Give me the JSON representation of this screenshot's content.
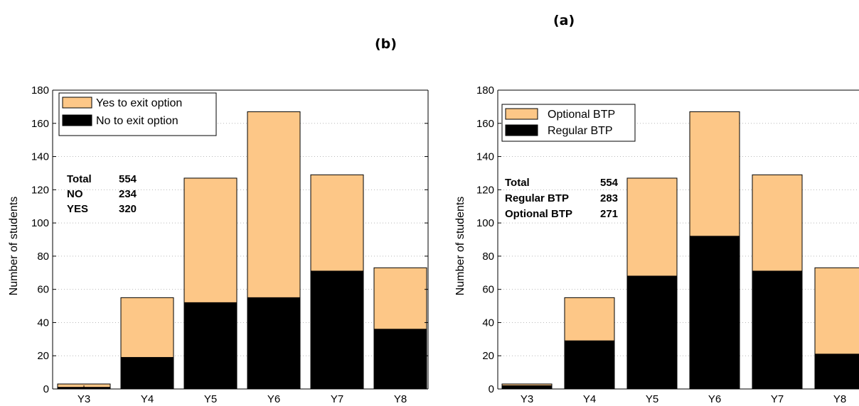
{
  "panel_labels": {
    "a": "(a)",
    "b": "(b)"
  },
  "colors": {
    "top_series": "#fdc787",
    "bottom_series": "#000000"
  },
  "chart_data": [
    {
      "type": "bar",
      "stacked": true,
      "categories": [
        "Y3",
        "Y4",
        "Y5",
        "Y6",
        "Y7",
        "Y8"
      ],
      "series": [
        {
          "name": "No to exit option",
          "values": [
            1,
            19,
            52,
            55,
            71,
            36
          ],
          "color": "#000000"
        },
        {
          "name": "Yes to exit option",
          "values": [
            2,
            36,
            75,
            112,
            58,
            37
          ],
          "color": "#fdc787"
        }
      ],
      "legend_order": [
        "Yes to exit option",
        "No to exit option"
      ],
      "legend": "top-left",
      "ylabel": "Number of students",
      "ylim": [
        0,
        180
      ],
      "yticks": [
        0,
        20,
        40,
        60,
        80,
        100,
        120,
        140,
        160,
        180
      ],
      "grid": true,
      "annotation": [
        {
          "label": "Total",
          "value": "554"
        },
        {
          "label": "NO",
          "value": "234"
        },
        {
          "label": "YES",
          "value": "320"
        }
      ]
    },
    {
      "type": "bar",
      "stacked": true,
      "categories": [
        "Y3",
        "Y4",
        "Y5",
        "Y6",
        "Y7",
        "Y8"
      ],
      "series": [
        {
          "name": "Regular BTP",
          "values": [
            2,
            29,
            68,
            92,
            71,
            21
          ],
          "color": "#000000"
        },
        {
          "name": "Optional BTP",
          "values": [
            1,
            26,
            59,
            75,
            58,
            52
          ],
          "color": "#fdc787"
        }
      ],
      "legend_order": [
        "Optional BTP",
        "Regular BTP"
      ],
      "legend": "top-left",
      "ylabel": "Number of students",
      "ylim": [
        0,
        180
      ],
      "yticks": [
        0,
        20,
        40,
        60,
        80,
        100,
        120,
        140,
        160,
        180
      ],
      "grid": true,
      "annotation": [
        {
          "label": "Total",
          "value": "554"
        },
        {
          "label": "Regular BTP",
          "value": "283"
        },
        {
          "label": "Optional BTP",
          "value": "271"
        }
      ]
    }
  ]
}
